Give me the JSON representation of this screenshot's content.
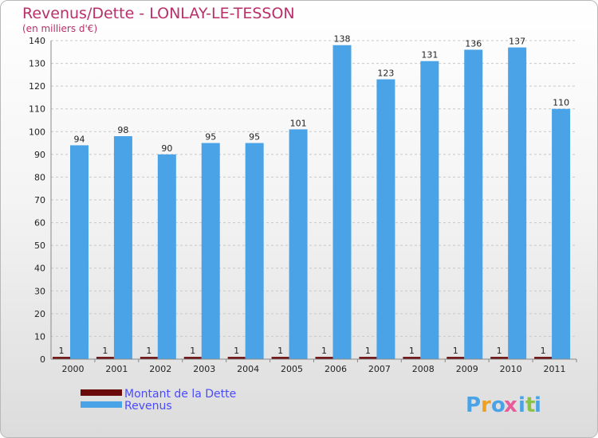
{
  "chart_data": {
    "type": "bar",
    "title": "Revenus/Dette - LONLAY-LE-TESSON",
    "subtitle": "(en milliers d'€)",
    "categories": [
      "2000",
      "2001",
      "2002",
      "2003",
      "2004",
      "2005",
      "2006",
      "2007",
      "2008",
      "2009",
      "2010",
      "2011"
    ],
    "series": [
      {
        "name": "Montant de la Dette",
        "color": "#6b0a0a",
        "values": [
          1,
          1,
          1,
          1,
          1,
          1,
          1,
          1,
          1,
          1,
          1,
          1
        ]
      },
      {
        "name": "Revenus",
        "color": "#4aa3e6",
        "values": [
          94,
          98,
          90,
          95,
          95,
          101,
          138,
          123,
          131,
          136,
          137,
          110
        ]
      }
    ],
    "ylim": [
      0,
      140
    ],
    "yticks": [
      0,
      10,
      20,
      30,
      40,
      50,
      60,
      70,
      80,
      90,
      100,
      110,
      120,
      130,
      140
    ],
    "grid": true,
    "legend": "bottom-left"
  },
  "logo": {
    "letters": [
      "P",
      "r",
      "o",
      "x",
      "i",
      "t",
      "i"
    ],
    "colors": [
      "#4aa3e6",
      "#f0a020",
      "#4aa3e6",
      "#e85a9a",
      "#4aa3e6",
      "#8bc34a",
      "#4aa3e6"
    ]
  }
}
